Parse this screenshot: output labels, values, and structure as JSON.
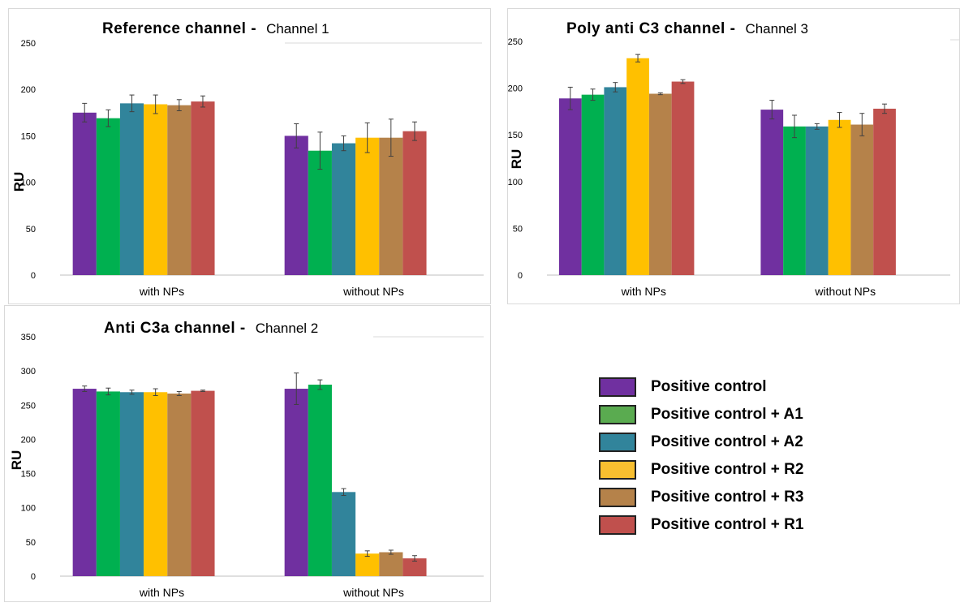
{
  "colors": [
    "#7030a0",
    "#00b050",
    "#31849b",
    "#ffc000",
    "#b5824a",
    "#c0504d"
  ],
  "legend": {
    "items": [
      {
        "label": "Positive control",
        "color": "#7030a0"
      },
      {
        "label": "Positive control + A1",
        "color": "#5aab50"
      },
      {
        "label": "Positive control + A2",
        "color": "#31849b"
      },
      {
        "label": "Positive control + R2",
        "color": "#f8bf30"
      },
      {
        "label": "Positive control + R3",
        "color": "#b5824a"
      },
      {
        "label": "Positive control + R1",
        "color": "#c0504d"
      }
    ]
  },
  "chart_data": [
    {
      "type": "bar",
      "title_bold": "Reference channel -",
      "title_normal": "Channel 1",
      "ylabel": "RU",
      "categories": [
        "with NPs",
        "without NPs"
      ],
      "ylim": [
        0,
        250
      ],
      "yticks": [
        0,
        50,
        100,
        150,
        200,
        250
      ],
      "series": [
        {
          "values": [
            175,
            150
          ],
          "errors": [
            10,
            13
          ]
        },
        {
          "values": [
            169,
            134
          ],
          "errors": [
            9,
            20
          ]
        },
        {
          "values": [
            185,
            142
          ],
          "errors": [
            9,
            8
          ]
        },
        {
          "values": [
            184,
            148
          ],
          "errors": [
            10,
            16
          ]
        },
        {
          "values": [
            183,
            148
          ],
          "errors": [
            6,
            20
          ]
        },
        {
          "values": [
            187,
            155
          ],
          "errors": [
            6,
            10
          ]
        }
      ]
    },
    {
      "type": "bar",
      "title_bold": "Poly anti C3 channel -",
      "title_normal": "Channel 3",
      "ylabel": "RU",
      "categories": [
        "with NPs",
        "without NPs"
      ],
      "ylim": [
        0,
        250
      ],
      "yticks": [
        0,
        50,
        100,
        150,
        200,
        250
      ],
      "series": [
        {
          "values": [
            189,
            177
          ],
          "errors": [
            12,
            10
          ]
        },
        {
          "values": [
            193,
            159
          ],
          "errors": [
            6,
            12
          ]
        },
        {
          "values": [
            201,
            159
          ],
          "errors": [
            5,
            3
          ]
        },
        {
          "values": [
            232,
            166
          ],
          "errors": [
            4,
            8
          ]
        },
        {
          "values": [
            194,
            161
          ],
          "errors": [
            1,
            12
          ]
        },
        {
          "values": [
            207,
            178
          ],
          "errors": [
            2,
            5
          ]
        }
      ]
    },
    {
      "type": "bar",
      "title_bold": "Anti C3a channel -",
      "title_normal": "Channel 2",
      "ylabel": "RU",
      "categories": [
        "with NPs",
        "without NPs"
      ],
      "ylim": [
        0,
        350
      ],
      "yticks": [
        0,
        50,
        100,
        150,
        200,
        250,
        300,
        350
      ],
      "series": [
        {
          "values": [
            274,
            274
          ],
          "errors": [
            4,
            23
          ]
        },
        {
          "values": [
            270,
            280
          ],
          "errors": [
            5,
            7
          ]
        },
        {
          "values": [
            269,
            123
          ],
          "errors": [
            3,
            5
          ]
        },
        {
          "values": [
            269,
            33
          ],
          "errors": [
            5,
            4
          ]
        },
        {
          "values": [
            267,
            35
          ],
          "errors": [
            3,
            3
          ]
        },
        {
          "values": [
            271,
            26
          ],
          "errors": [
            1,
            4
          ]
        }
      ]
    }
  ]
}
